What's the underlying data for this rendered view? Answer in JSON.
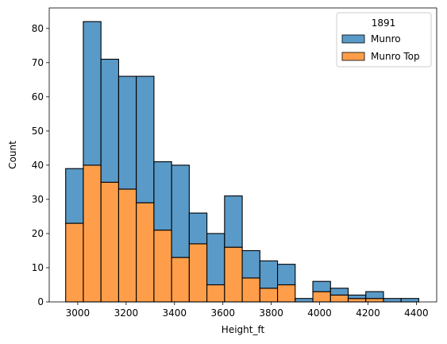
{
  "chart_data": {
    "type": "bar",
    "stacked": true,
    "xlabel": "Height_ft",
    "ylabel": "Count",
    "xlim": [
      2882,
      4484
    ],
    "ylim": [
      0,
      86
    ],
    "bin_edges": [
      2950,
      3023,
      3096,
      3169,
      3242,
      3315,
      3388,
      3461,
      3534,
      3607,
      3680,
      3753,
      3826,
      3899,
      3972,
      4045,
      4118,
      4191,
      4264,
      4337,
      4410
    ],
    "series": [
      {
        "name": "Munro Top",
        "color": "#ff9e4a",
        "values": [
          23,
          40,
          35,
          33,
          29,
          21,
          13,
          17,
          5,
          16,
          7,
          4,
          5,
          0,
          3,
          2,
          1,
          1,
          0,
          0
        ]
      },
      {
        "name": "Munro",
        "color": "#5a9ac8",
        "values": [
          16,
          42,
          36,
          33,
          37,
          20,
          27,
          9,
          15,
          15,
          8,
          8,
          6,
          1,
          3,
          2,
          1,
          2,
          1,
          1
        ]
      }
    ],
    "x_ticks": [
      3000,
      3200,
      3400,
      3600,
      3800,
      4000,
      4200,
      4400
    ],
    "y_ticks": [
      0,
      10,
      20,
      30,
      40,
      50,
      60,
      70,
      80
    ],
    "legend": {
      "title": "1891",
      "placement": "top-right",
      "entries": [
        "Munro",
        "Munro Top"
      ]
    },
    "grid": false
  }
}
